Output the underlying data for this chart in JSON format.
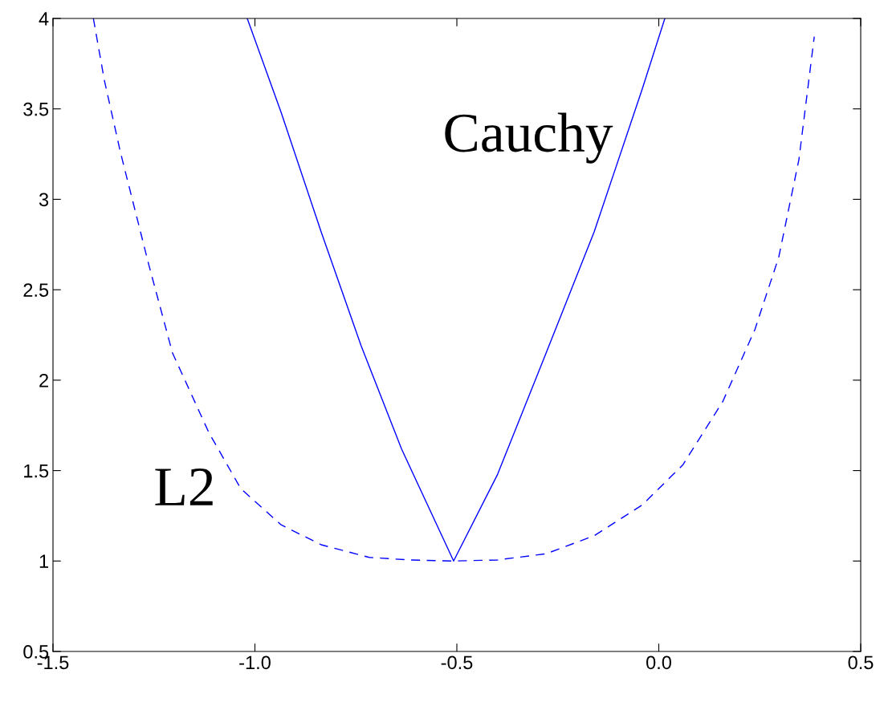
{
  "chart_data": {
    "type": "line",
    "xlim": [
      -1.5,
      0.5
    ],
    "ylim": [
      0.5,
      4
    ],
    "xticks": [
      -1.5,
      {
        "value": -1.0,
        "label": "-1.0"
      },
      -0.5,
      {
        "value": 0.0,
        "label": "0.0"
      },
      0.5
    ],
    "yticks": [
      0.5,
      1,
      1.5,
      2,
      2.5,
      3,
      3.5,
      4
    ],
    "grid": false,
    "marker": "none",
    "series": [
      {
        "name": "L2",
        "color": "#0000ff",
        "line_style": "dashed",
        "x": [
          -1.4,
          -1.373,
          -1.333,
          -1.263,
          -1.204,
          -1.114,
          -1.035,
          -0.935,
          -0.836,
          -0.717,
          -0.617,
          -0.508,
          -0.399,
          -0.279,
          -0.16,
          -0.041,
          0.059,
          0.158,
          0.238,
          0.297,
          0.347,
          0.385
        ],
        "values": [
          4.0,
          3.66,
          3.26,
          2.64,
          2.15,
          1.71,
          1.4,
          1.2,
          1.09,
          1.02,
          1.006,
          1.0,
          1.006,
          1.04,
          1.14,
          1.31,
          1.53,
          1.88,
          2.28,
          2.68,
          3.22,
          3.9
        ]
      },
      {
        "name": "Cauchy",
        "color": "#0000ff",
        "line_style": "solid",
        "x": [
          -1.019,
          -0.935,
          -0.836,
          -0.737,
          -0.637,
          -0.508,
          -0.399,
          -0.279,
          -0.16,
          -0.041,
          0.015
        ],
        "values": [
          4.0,
          3.48,
          2.82,
          2.19,
          1.62,
          1.0,
          1.48,
          2.15,
          2.82,
          3.61,
          4.0
        ]
      }
    ]
  }
}
